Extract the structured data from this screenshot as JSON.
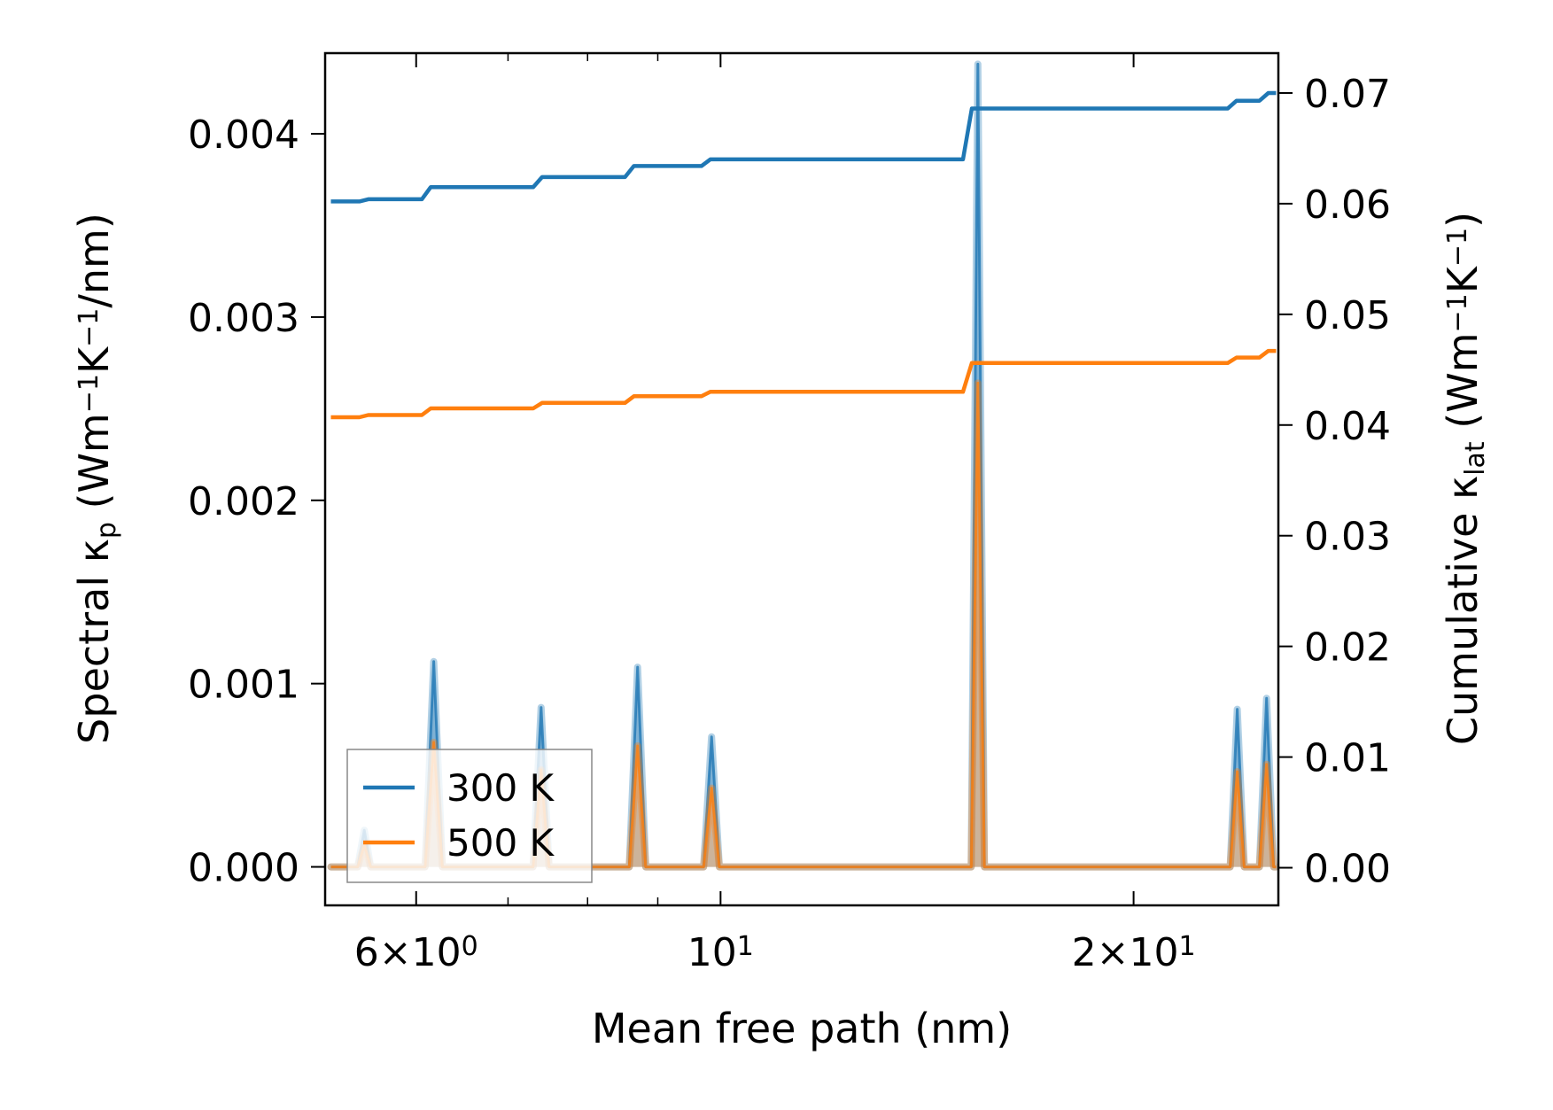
{
  "chart_data": {
    "type": "line",
    "x_scale": "log",
    "xlim": [
      5.15,
      25.5
    ],
    "xlabel": "Mean free path (nm)",
    "x_major_ticks": [
      {
        "value": 6,
        "label_mantissa": "6",
        "label_base": "10",
        "label_exp": "0"
      },
      {
        "value": 10,
        "label_mantissa": "",
        "label_base": "10",
        "label_exp": "1"
      },
      {
        "value": 20,
        "label_mantissa": "2",
        "label_base": "10",
        "label_exp": "1"
      }
    ],
    "x_minor_ticks": [
      7,
      8,
      9,
      30
    ],
    "left_axis": {
      "label_prefix": "Spectral κ",
      "label_sub": "p",
      "label_units": " (Wm",
      "label_sup1": "−1",
      "label_mid": "K",
      "label_sup2": "−1",
      "label_end": "/nm)",
      "ylim": [
        -0.00021,
        0.00444
      ],
      "ticks": [
        {
          "value": 0.0,
          "label": "0.000"
        },
        {
          "value": 0.001,
          "label": "0.001"
        },
        {
          "value": 0.002,
          "label": "0.002"
        },
        {
          "value": 0.003,
          "label": "0.003"
        },
        {
          "value": 0.004,
          "label": "0.004"
        }
      ]
    },
    "right_axis": {
      "label_prefix": "Cumulative κ",
      "label_sub": "lat",
      "label_units": " (Wm",
      "label_sup1": "−1",
      "label_mid": "K",
      "label_sup2": "−1",
      "label_end": ")",
      "ylim": [
        -0.0034,
        0.0736
      ],
      "ticks": [
        {
          "value": 0.0,
          "label": "0.00"
        },
        {
          "value": 0.01,
          "label": "0.01"
        },
        {
          "value": 0.02,
          "label": "0.02"
        },
        {
          "value": 0.03,
          "label": "0.03"
        },
        {
          "value": 0.04,
          "label": "0.04"
        },
        {
          "value": 0.05,
          "label": "0.05"
        },
        {
          "value": 0.06,
          "label": "0.06"
        },
        {
          "value": 0.07,
          "label": "0.07"
        }
      ]
    },
    "legend": {
      "position": "lower-left",
      "entries": [
        {
          "name": "300 K",
          "color": "#1f77b4"
        },
        {
          "name": "500 K",
          "color": "#ff7f0e"
        }
      ]
    },
    "series": [
      {
        "name": "300 K",
        "color": "#1f77b4",
        "spectral_peaks": [
          {
            "x": 5.5,
            "height": 0.0002,
            "half_width": 0.06
          },
          {
            "x": 6.18,
            "height": 0.00112,
            "half_width": 0.09
          },
          {
            "x": 7.4,
            "height": 0.00087,
            "half_width": 0.1
          },
          {
            "x": 8.7,
            "height": 0.00109,
            "half_width": 0.12
          },
          {
            "x": 9.85,
            "height": 0.00071,
            "half_width": 0.13
          },
          {
            "x": 15.4,
            "height": 0.00438,
            "half_width": 0.17
          },
          {
            "x": 23.8,
            "height": 0.00086,
            "half_width": 0.28
          },
          {
            "x": 25.0,
            "height": 0.00092,
            "half_width": 0.3
          }
        ],
        "cumulative_steps": [
          {
            "x": 5.2,
            "y": 0.0602
          },
          {
            "x": 5.52,
            "y": 0.0604
          },
          {
            "x": 6.13,
            "y": 0.0615
          },
          {
            "x": 7.39,
            "y": 0.0624
          },
          {
            "x": 8.62,
            "y": 0.0634
          },
          {
            "x": 9.8,
            "y": 0.064
          },
          {
            "x": 15.2,
            "y": 0.0686
          },
          {
            "x": 23.7,
            "y": 0.0693
          },
          {
            "x": 25.0,
            "y": 0.07
          },
          {
            "x": 25.4,
            "y": 0.07
          }
        ]
      },
      {
        "name": "500 K",
        "color": "#ff7f0e",
        "spectral_peaks": [
          {
            "x": 5.5,
            "height": 0.00012,
            "half_width": 0.06
          },
          {
            "x": 6.18,
            "height": 0.00068,
            "half_width": 0.09
          },
          {
            "x": 7.4,
            "height": 0.00053,
            "half_width": 0.1
          },
          {
            "x": 8.7,
            "height": 0.00066,
            "half_width": 0.12
          },
          {
            "x": 9.85,
            "height": 0.00043,
            "half_width": 0.13
          },
          {
            "x": 15.4,
            "height": 0.00264,
            "half_width": 0.17
          },
          {
            "x": 23.8,
            "height": 0.00052,
            "half_width": 0.28
          },
          {
            "x": 25.0,
            "height": 0.00056,
            "half_width": 0.3
          }
        ],
        "cumulative_steps": [
          {
            "x": 5.2,
            "y": 0.0407
          },
          {
            "x": 5.52,
            "y": 0.0409
          },
          {
            "x": 6.13,
            "y": 0.0415
          },
          {
            "x": 7.39,
            "y": 0.042
          },
          {
            "x": 8.62,
            "y": 0.0426
          },
          {
            "x": 9.8,
            "y": 0.043
          },
          {
            "x": 15.2,
            "y": 0.0456
          },
          {
            "x": 23.7,
            "y": 0.0461
          },
          {
            "x": 25.0,
            "y": 0.0467
          },
          {
            "x": 25.4,
            "y": 0.0467
          }
        ]
      }
    ]
  }
}
